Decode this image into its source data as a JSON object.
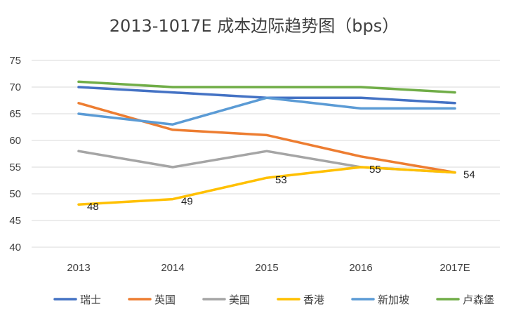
{
  "chart_data": {
    "type": "line",
    "title": "2013-1017E 成本边际趋势图（bps）",
    "xlabel": "",
    "ylabel": "",
    "categories": [
      "2013",
      "2014",
      "2015",
      "2016",
      "2017E"
    ],
    "ylim": [
      40,
      75
    ],
    "yticks": [
      40,
      45,
      50,
      55,
      60,
      65,
      70,
      75
    ],
    "grid": true,
    "legend_position": "bottom",
    "series": [
      {
        "name": "瑞士",
        "color": "#4472C4",
        "values": [
          70,
          69,
          68,
          68,
          67
        ]
      },
      {
        "name": "英国",
        "color": "#ED7D31",
        "values": [
          67,
          62,
          61,
          57,
          54
        ]
      },
      {
        "name": "美国",
        "color": "#A5A5A5",
        "values": [
          58,
          55,
          58,
          55,
          54
        ]
      },
      {
        "name": "香港",
        "color": "#FFC000",
        "values": [
          48,
          49,
          53,
          55,
          54
        ],
        "data_labels": [
          "48",
          "49",
          "53",
          "55",
          "54"
        ]
      },
      {
        "name": "新加坡",
        "color": "#5B9BD5",
        "values": [
          65,
          63,
          68,
          66,
          66
        ]
      },
      {
        "name": "卢森堡",
        "color": "#70AD47",
        "values": [
          71,
          70,
          70,
          70,
          69
        ]
      }
    ]
  }
}
